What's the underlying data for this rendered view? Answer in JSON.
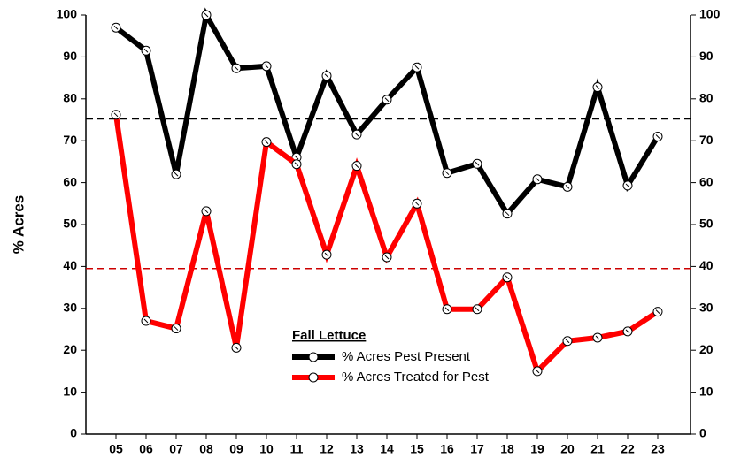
{
  "chart_data": {
    "type": "line",
    "y_label": "% Acres",
    "legend_title": "Fall Lettuce",
    "categories": [
      "05",
      "06",
      "07",
      "08",
      "09",
      "10",
      "11",
      "12",
      "13",
      "14",
      "15",
      "16",
      "17",
      "18",
      "19",
      "20",
      "21",
      "22",
      "23"
    ],
    "series": [
      {
        "name": "% Acres Pest Present",
        "color": "#000000",
        "values": [
          97,
          91.5,
          62,
          100,
          87.3,
          87.8,
          66,
          85.5,
          71.5,
          79.8,
          87.5,
          62.3,
          64.5,
          52.6,
          60.8,
          59,
          82.8,
          59.3,
          71
        ]
      },
      {
        "name": "% Acres Treated for Pest",
        "color": "#ff0000",
        "values": [
          76.2,
          27,
          25.2,
          53.2,
          20.6,
          69.7,
          64.4,
          42.8,
          64,
          42.2,
          55,
          29.8,
          29.8,
          37.4,
          15,
          22.2,
          23,
          24.5,
          29.2
        ]
      }
    ],
    "reference_lines": [
      {
        "value": 75.2,
        "color": "#000000"
      },
      {
        "value": 39.5,
        "color": "#cc0000"
      }
    ],
    "ylim": [
      0,
      100
    ],
    "yticks": [
      0,
      10,
      20,
      30,
      40,
      50,
      60,
      70,
      80,
      90,
      100
    ],
    "y2lim": [
      0,
      100
    ],
    "y2ticks": [
      0,
      10,
      20,
      30,
      40,
      50,
      60,
      70,
      80,
      90,
      100
    ]
  }
}
